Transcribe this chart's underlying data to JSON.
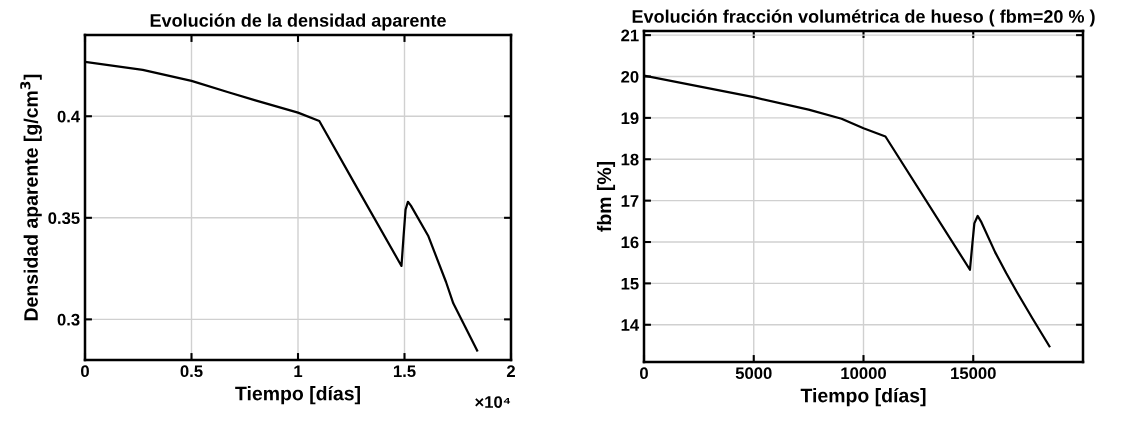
{
  "chart_data": [
    {
      "type": "line",
      "title": "Evolución de la densidad aparente",
      "xlabel": "Tiempo [días]",
      "ylabel": "Densidad aparente [g/cm$^{3}$]",
      "annotations": [
        "×10⁴"
      ],
      "xlim": [
        0,
        2
      ],
      "xticks": [
        0,
        0.5,
        1,
        1.5,
        2
      ],
      "ylim": [
        0.28,
        0.44
      ],
      "yticks": [
        0.3,
        0.35,
        0.4
      ],
      "grid": true,
      "legend": false,
      "series": [
        {
          "color": "#000000",
          "x": [
            0,
            0.271,
            0.5,
            0.673,
            0.8,
            1.0,
            1.1,
            1.276,
            1.4858,
            1.495,
            1.505,
            1.516,
            1.53,
            1.611,
            1.695,
            1.729,
            1.841
          ],
          "values": [
            0.4268,
            0.4228,
            0.4174,
            0.4118,
            0.4078,
            0.4018,
            0.3977,
            0.365,
            0.3263,
            0.34,
            0.354,
            0.3579,
            0.356,
            0.3412,
            0.3184,
            0.3079,
            0.2847
          ]
        }
      ]
    },
    {
      "type": "line",
      "title": "Evolución fracción volumétrica de hueso ( fbm=20 % )",
      "xlabel": "Tiempo [días]",
      "ylabel": "fbm [%]",
      "xlim": [
        0,
        20000
      ],
      "xticks": [
        0,
        5000,
        10000,
        15000
      ],
      "ylim": [
        13.1,
        21.1
      ],
      "yticks": [
        14,
        15,
        16,
        17,
        18,
        19,
        20,
        21
      ],
      "grid": true,
      "legend": false,
      "series": [
        {
          "color": "#000000",
          "x": [
            0,
            2500,
            5000,
            7500,
            9000,
            10000,
            11000,
            14850,
            14950,
            15050,
            15200,
            15350,
            16000,
            16500,
            17000,
            17700,
            18470
          ],
          "values": [
            20.02,
            19.76,
            19.5,
            19.2,
            18.98,
            18.75,
            18.55,
            15.33,
            15.9,
            16.45,
            16.63,
            16.5,
            15.75,
            15.25,
            14.78,
            14.15,
            13.48
          ]
        }
      ]
    }
  ]
}
